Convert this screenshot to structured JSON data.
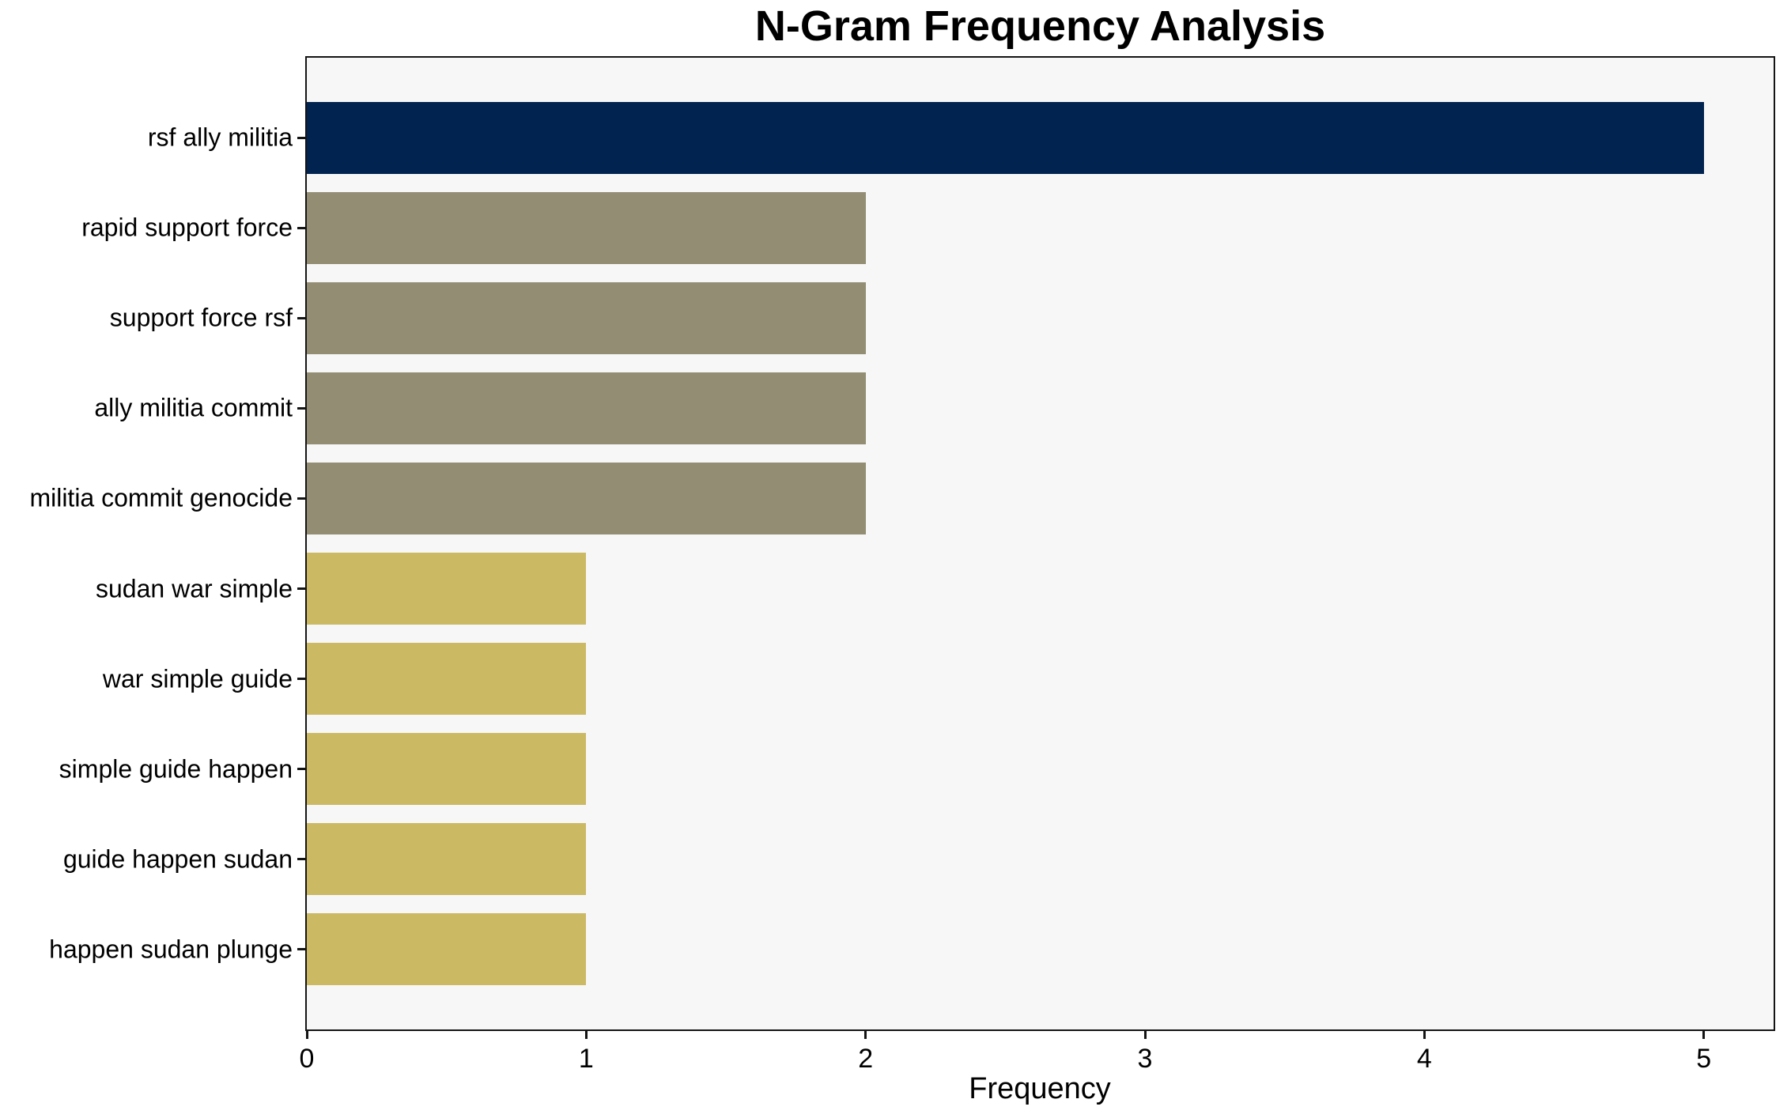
{
  "chart_data": {
    "type": "bar",
    "orientation": "horizontal",
    "title": "N-Gram Frequency Analysis",
    "xlabel": "Frequency",
    "ylabel": "",
    "categories": [
      "rsf ally militia",
      "rapid support force",
      "support force rsf",
      "ally militia commit",
      "militia commit genocide",
      "sudan war simple",
      "war simple guide",
      "simple guide happen",
      "guide happen sudan",
      "happen sudan plunge"
    ],
    "values": [
      5,
      2,
      2,
      2,
      2,
      1,
      1,
      1,
      1,
      1
    ],
    "bar_colors": [
      "#012350",
      "#938d74",
      "#938d74",
      "#938d74",
      "#938d74",
      "#cbb963",
      "#cbb963",
      "#cbb963",
      "#cbb963",
      "#cbb963"
    ],
    "xlim": [
      0,
      5.25
    ],
    "xticks": [
      0,
      1,
      2,
      3,
      4,
      5
    ],
    "x_tick_labels": [
      "0",
      "1",
      "2",
      "3",
      "4",
      "5"
    ],
    "grid": false,
    "legend": false,
    "colors": {
      "plot_background": "#f7f7f7",
      "figure_background": "#ffffff",
      "spine": "#141414",
      "text": "#000000"
    },
    "bar_height_fraction": 0.8,
    "axis_margin_fraction": 0.05
  }
}
